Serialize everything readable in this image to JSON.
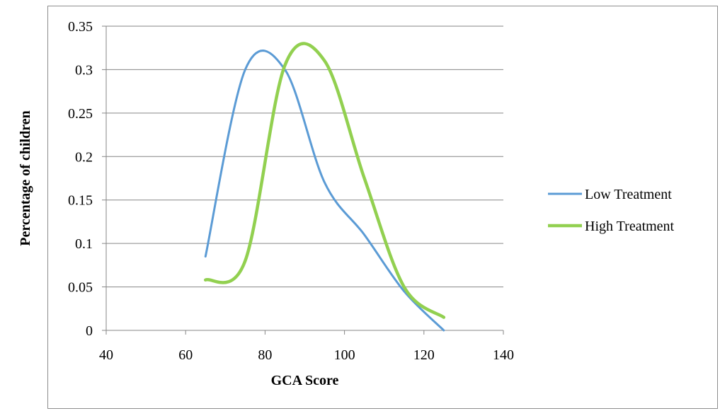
{
  "chart_data": {
    "type": "line",
    "title": "",
    "xlabel": "GCA Score",
    "ylabel": "Percentage of children",
    "xlim": [
      40,
      140
    ],
    "ylim": [
      0,
      0.35
    ],
    "x_ticks": [
      "40",
      "60",
      "80",
      "100",
      "120",
      "140"
    ],
    "y_ticks": [
      "0",
      "0.05",
      "0.1",
      "0.15",
      "0.2",
      "0.25",
      "0.3",
      "0.35"
    ],
    "grid": "horizontal",
    "legend_position": "right",
    "smooth": true,
    "series": [
      {
        "name": "Low Treatment",
        "color": "#5b9bd5",
        "x": [
          65,
          75,
          85,
          95,
          105,
          115,
          125
        ],
        "y": [
          0.085,
          0.3,
          0.3,
          0.17,
          0.11,
          0.045,
          0.0
        ]
      },
      {
        "name": "High Treatment",
        "color": "#92d050",
        "x": [
          65,
          75,
          85,
          95,
          105,
          115,
          125
        ],
        "y": [
          0.058,
          0.08,
          0.305,
          0.31,
          0.175,
          0.05,
          0.015
        ]
      }
    ]
  }
}
